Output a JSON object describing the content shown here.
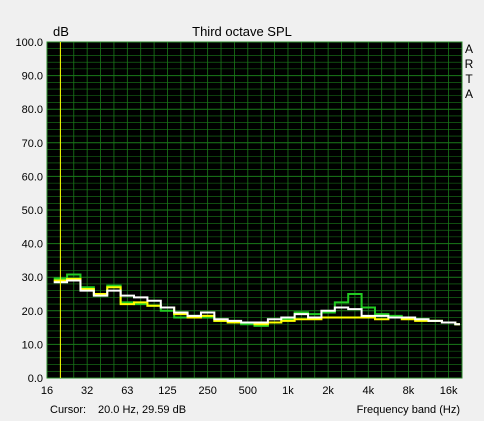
{
  "chart_data": {
    "type": "line",
    "title": "Third octave SPL",
    "ylabel": "dB",
    "xlabel": "Frequency band (Hz)",
    "ylim": [
      0,
      100
    ],
    "y_ticks": [
      "0.0",
      "10.0",
      "20.0",
      "30.0",
      "40.0",
      "50.0",
      "60.0",
      "70.0",
      "80.0",
      "90.0",
      "100.0"
    ],
    "x_ticks": [
      "16",
      "32",
      "63",
      "125",
      "250",
      "500",
      "1k",
      "2k",
      "4k",
      "8k",
      "16k"
    ],
    "bands": [
      "16",
      "20",
      "25",
      "31.5",
      "40",
      "50",
      "63",
      "80",
      "100",
      "125",
      "160",
      "200",
      "250",
      "315",
      "400",
      "500",
      "630",
      "800",
      "1k",
      "1.25k",
      "1.6k",
      "2k",
      "2.5k",
      "3.15k",
      "4k",
      "5k",
      "6.3k",
      "8k",
      "10k",
      "12.5k",
      "16k"
    ],
    "series": [
      {
        "color": "#22cc22",
        "values": [
          29.6,
          30.8,
          27.0,
          24.5,
          27.5,
          22.5,
          22.0,
          21.5,
          20.0,
          18.0,
          18.5,
          18.0,
          17.0,
          16.5,
          16.0,
          15.5,
          16.5,
          17.5,
          19.5,
          19.0,
          19.5,
          22.5,
          25.0,
          21.0,
          19.0,
          18.5,
          18.0,
          17.5,
          17.0,
          16.5,
          16.0
        ]
      },
      {
        "color": "#ffff00",
        "values": [
          29.0,
          29.5,
          26.5,
          25.0,
          27.0,
          22.0,
          22.5,
          21.5,
          21.0,
          19.0,
          18.0,
          18.5,
          17.0,
          16.5,
          16.5,
          16.0,
          16.5,
          17.0,
          17.5,
          17.5,
          18.0,
          18.0,
          18.0,
          18.0,
          17.5,
          18.0,
          17.5,
          17.0,
          17.0,
          16.5,
          16.0
        ]
      },
      {
        "color": "#ffffff",
        "values": [
          28.5,
          29.0,
          26.0,
          24.5,
          26.0,
          24.5,
          24.0,
          23.0,
          21.0,
          19.5,
          18.5,
          19.5,
          17.5,
          17.0,
          16.5,
          16.5,
          17.5,
          18.0,
          19.0,
          18.0,
          20.0,
          21.0,
          20.5,
          18.5,
          18.5,
          18.0,
          18.0,
          17.5,
          17.0,
          16.5,
          16.0
        ]
      }
    ],
    "grid": true,
    "background": "#000000",
    "grid_color": "#1a7a1a",
    "cursor_marker_color": "#ffff00"
  },
  "cursor": {
    "label": "Cursor:",
    "value": "20.0 Hz, 29.59 dB"
  },
  "brand": [
    "A",
    "R",
    "T",
    "A"
  ]
}
